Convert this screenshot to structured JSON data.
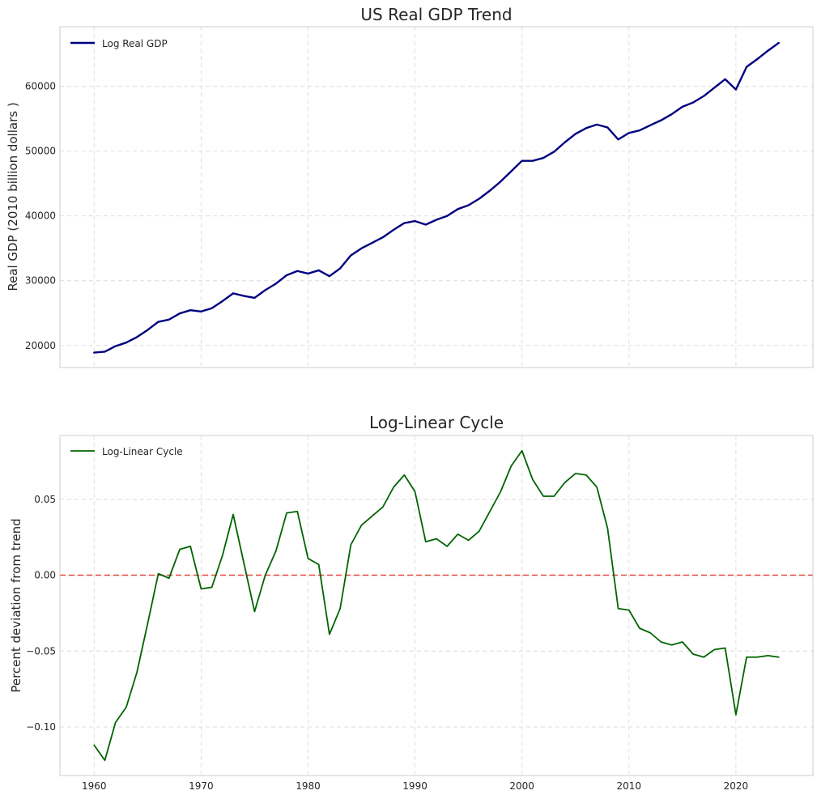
{
  "chart_data": [
    {
      "type": "line",
      "title": "US Real GDP Trend",
      "xlabel": "",
      "ylabel": "Real GDP (2010 billion dollars )",
      "xlim": [
        1956.8,
        2027.2
      ],
      "ylim": [
        16600,
        69200
      ],
      "xticks": [
        1960,
        1970,
        1980,
        1990,
        2000,
        2010,
        2020
      ],
      "yticks": [
        20000,
        30000,
        40000,
        50000,
        60000
      ],
      "ytick_labels": [
        "20000",
        "30000",
        "40000",
        "50000",
        "60000"
      ],
      "grid": true,
      "legend_position": "top-left",
      "series": [
        {
          "name": "Log Real GDP",
          "color": "#000080",
          "x": [
            1960,
            1961,
            1962,
            1963,
            1964,
            1965,
            1966,
            1967,
            1968,
            1969,
            1970,
            1971,
            1972,
            1973,
            1974,
            1975,
            1976,
            1977,
            1978,
            1979,
            1980,
            1981,
            1982,
            1983,
            1984,
            1985,
            1986,
            1987,
            1988,
            1989,
            1990,
            1991,
            1992,
            1993,
            1994,
            1995,
            1996,
            1997,
            1998,
            1999,
            2000,
            2001,
            2002,
            2003,
            2004,
            2005,
            2006,
            2007,
            2008,
            2009,
            2010,
            2011,
            2012,
            2013,
            2014,
            2015,
            2016,
            2017,
            2018,
            2019,
            2020,
            2021,
            2022,
            2023,
            2024
          ],
          "y": [
            18900,
            19050,
            19900,
            20450,
            21300,
            22400,
            23650,
            24000,
            24950,
            25450,
            25250,
            25750,
            26850,
            28050,
            27650,
            27350,
            28550,
            29550,
            30850,
            31500,
            31100,
            31600,
            30700,
            31900,
            33900,
            35000,
            35850,
            36700,
            37850,
            38900,
            39200,
            38650,
            39400,
            40000,
            41050,
            41650,
            42650,
            43900,
            45300,
            46900,
            48500,
            48500,
            48950,
            49900,
            51350,
            52650,
            53550,
            54100,
            53650,
            51800,
            52800,
            53200,
            54000,
            54750,
            55700,
            56850,
            57500,
            58500,
            59800,
            61100,
            59500,
            63000,
            64200,
            65500,
            66700
          ]
        }
      ]
    },
    {
      "type": "line",
      "title": "Log-Linear Cycle",
      "xlabel": "",
      "ylabel": "Percent deviation from trend",
      "xlim": [
        1956.8,
        2027.2
      ],
      "ylim": [
        -0.132,
        0.092
      ],
      "xticks": [
        1960,
        1970,
        1980,
        1990,
        2000,
        2010,
        2020
      ],
      "xtick_labels": [
        "1960",
        "1970",
        "1980",
        "1990",
        "2000",
        "2010",
        "2020"
      ],
      "yticks": [
        -0.1,
        -0.05,
        0.0,
        0.05
      ],
      "ytick_labels": [
        "−0.10",
        "−0.05",
        "0.00",
        "0.05"
      ],
      "grid": true,
      "legend_position": "top-left",
      "reference_line": {
        "y": 0.0,
        "color": "#e8423a",
        "style": "dashed"
      },
      "series": [
        {
          "name": "Log-Linear Cycle",
          "color": "#006400",
          "x": [
            1960,
            1961,
            1962,
            1963,
            1964,
            1965,
            1966,
            1967,
            1968,
            1969,
            1970,
            1971,
            1972,
            1973,
            1974,
            1975,
            1976,
            1977,
            1978,
            1979,
            1980,
            1981,
            1982,
            1983,
            1984,
            1985,
            1986,
            1987,
            1988,
            1989,
            1990,
            1991,
            1992,
            1993,
            1994,
            1995,
            1996,
            1997,
            1998,
            1999,
            2000,
            2001,
            2002,
            2003,
            2004,
            2005,
            2006,
            2007,
            2008,
            2009,
            2010,
            2011,
            2012,
            2013,
            2014,
            2015,
            2016,
            2017,
            2018,
            2019,
            2020,
            2021,
            2022,
            2023,
            2024
          ],
          "y": [
            -0.112,
            -0.122,
            -0.097,
            -0.087,
            -0.064,
            -0.032,
            0.001,
            -0.002,
            0.017,
            0.019,
            -0.009,
            -0.008,
            0.013,
            0.04,
            0.008,
            -0.024,
            0.0,
            0.016,
            0.041,
            0.042,
            0.011,
            0.007,
            -0.039,
            -0.022,
            0.02,
            0.033,
            0.039,
            0.045,
            0.058,
            0.066,
            0.055,
            0.022,
            0.024,
            0.019,
            0.027,
            0.023,
            0.029,
            0.042,
            0.055,
            0.072,
            0.082,
            0.063,
            0.052,
            0.052,
            0.061,
            0.067,
            0.066,
            0.058,
            0.031,
            -0.022,
            -0.023,
            -0.035,
            -0.038,
            -0.044,
            -0.046,
            -0.044,
            -0.052,
            -0.054,
            -0.049,
            -0.048,
            -0.092,
            -0.054,
            -0.054,
            -0.053,
            -0.054
          ]
        }
      ]
    }
  ]
}
